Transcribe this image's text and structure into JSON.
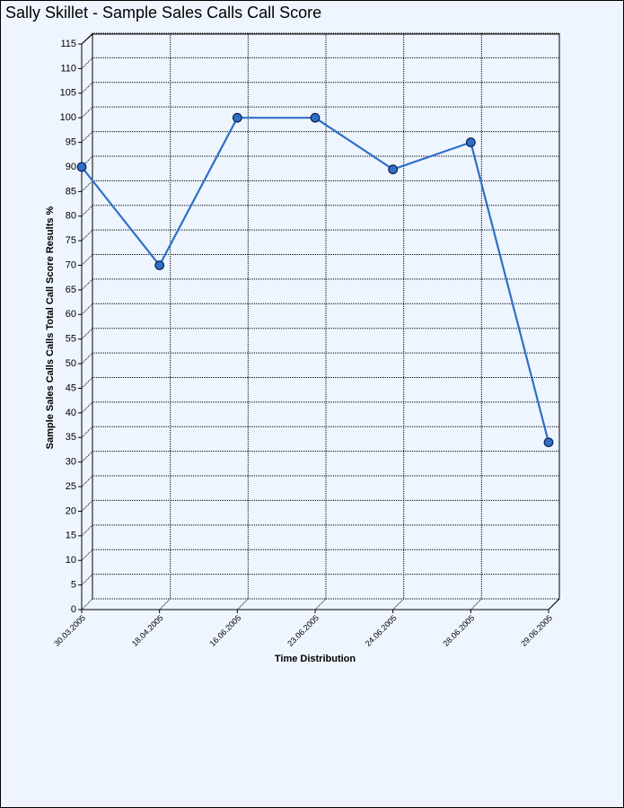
{
  "chart_data": {
    "type": "line",
    "title": "Sally Skillet - Sample Sales Calls Call Score",
    "x_label": "Time Distribution",
    "y_label": "Sample Sales Calls Calls Total Call Score Results %",
    "categories": [
      "30.03.2005",
      "18.04.2005",
      "16.06.2005",
      "23.06.2005",
      "24.06.2005",
      "28.06.2005",
      "29.06.2005"
    ],
    "values": [
      90,
      70,
      100,
      100,
      89.5,
      95,
      34
    ],
    "color": "#2f6fc8",
    "ylim": [
      0,
      115
    ],
    "yticks": [
      0,
      5,
      10,
      15,
      20,
      25,
      30,
      35,
      40,
      45,
      50,
      55,
      60,
      65,
      70,
      75,
      80,
      85,
      90,
      95,
      100,
      105,
      110,
      115
    ],
    "grid": true
  }
}
